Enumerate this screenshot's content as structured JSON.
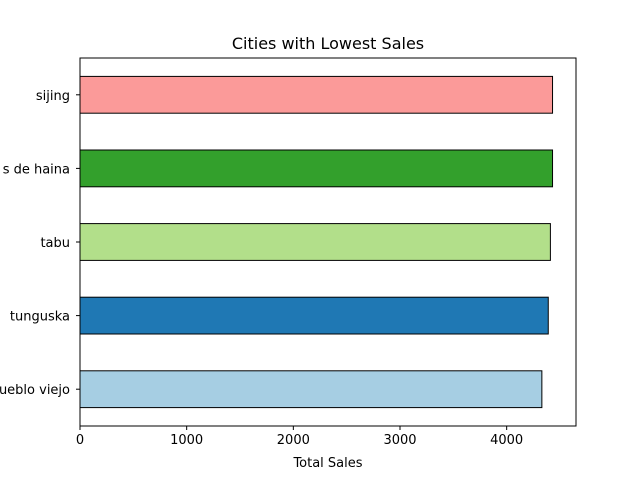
{
  "chart_data": {
    "type": "bar",
    "orientation": "horizontal",
    "title": "Cities with Lowest Sales",
    "xlabel": "Total Sales",
    "ylabel": "",
    "xlim": [
      0,
      4650
    ],
    "xticks": [
      0,
      1000,
      2000,
      3000,
      4000
    ],
    "categories": [
      "pueblo viejo",
      "tunguska",
      "tabu",
      "bajos de haina",
      "sijing"
    ],
    "category_labels_visible": [
      "ueblo viejo",
      "tunguska",
      "tabu",
      "s de haina",
      "sijing"
    ],
    "values": [
      4330,
      4390,
      4410,
      4430,
      4430
    ],
    "colors": [
      "#a6cee3",
      "#1f78b4",
      "#b2df8a",
      "#33a02c",
      "#fb9a99"
    ],
    "edge_color": "#000000",
    "grid": false,
    "legend": "none"
  }
}
